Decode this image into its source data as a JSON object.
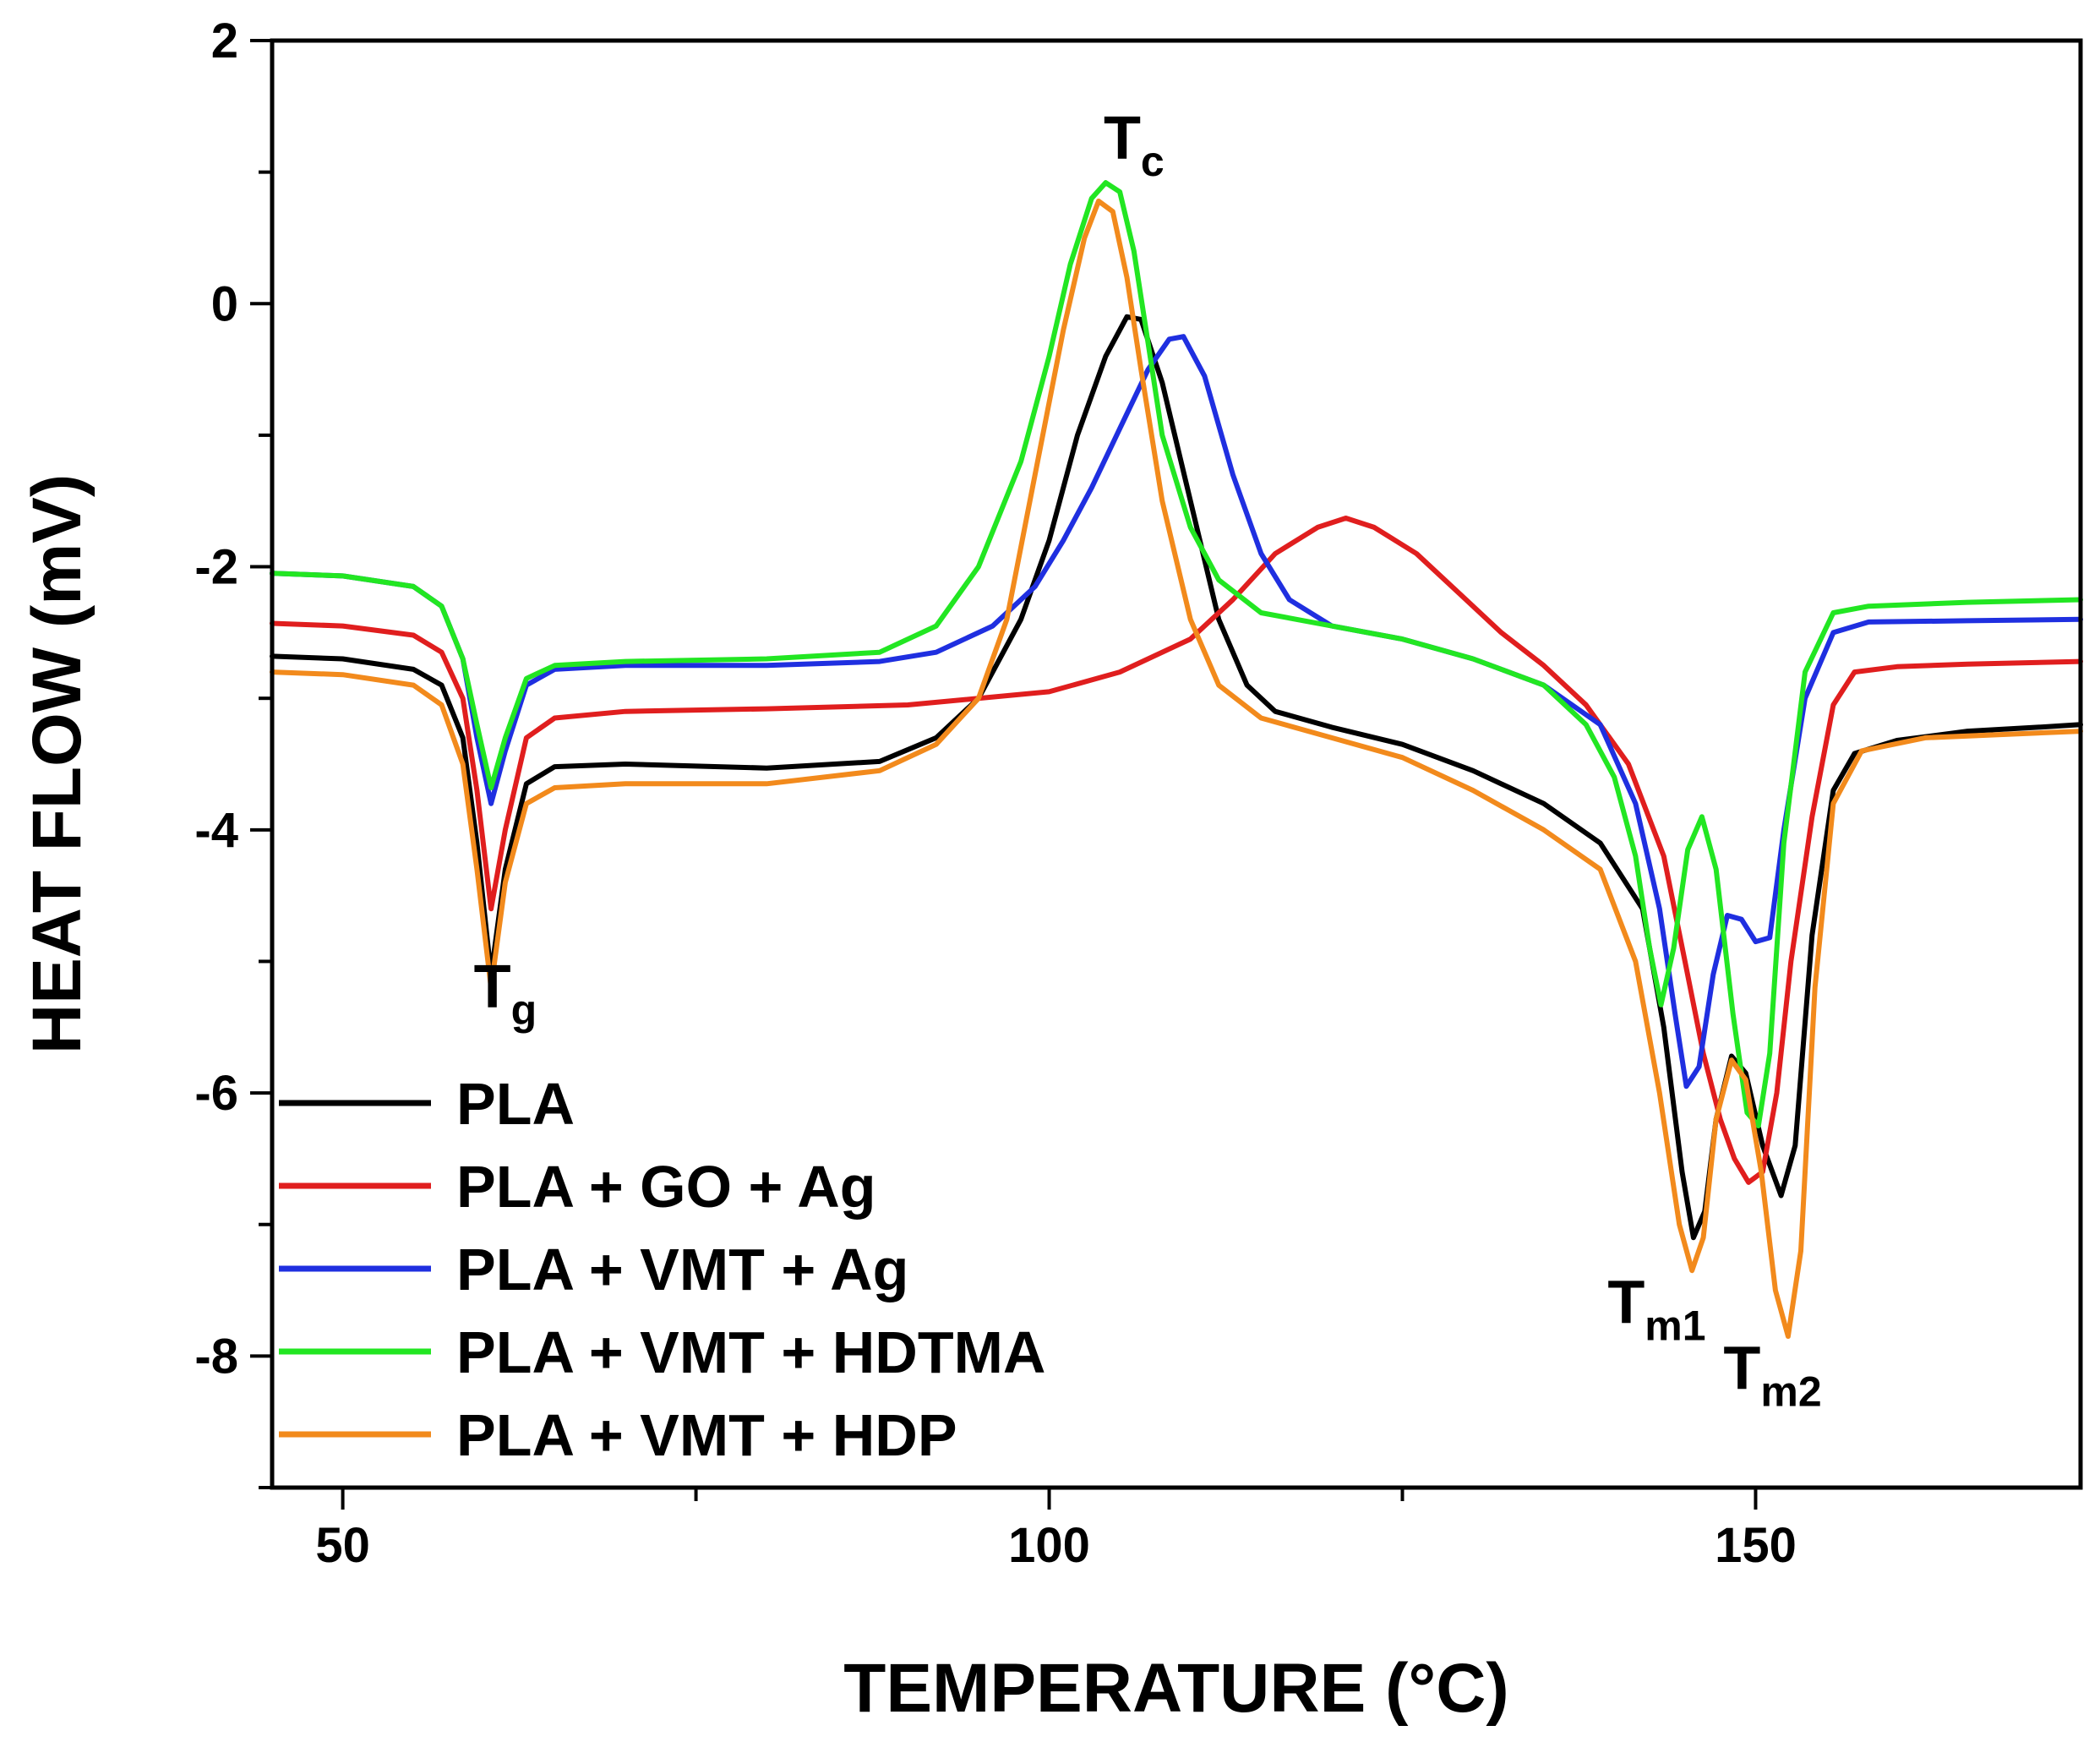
{
  "chart_data": {
    "type": "line",
    "xlabel": "TEMPERATURE (°C)",
    "ylabel": "HEAT FLOW (mV)",
    "xlim": [
      45,
      173
    ],
    "ylim": [
      -9,
      2
    ],
    "x_ticks": [
      50,
      100,
      150
    ],
    "y_ticks": [
      2,
      0,
      -2,
      -4,
      -6,
      -8
    ],
    "grid": false,
    "legend_position": "bottom-left",
    "annotations": [
      {
        "id": "tc",
        "main": "T",
        "sub": "c",
        "x": 106,
        "y": 1.1
      },
      {
        "id": "tg",
        "main": "T",
        "sub": "g",
        "x": 61.5,
        "y": -5.35
      },
      {
        "id": "tm1",
        "main": "T",
        "sub": "m1",
        "x": 143,
        "y": -7.75
      },
      {
        "id": "tm2",
        "main": "T",
        "sub": "m2",
        "x": 151.2,
        "y": -8.25
      }
    ],
    "series": [
      {
        "name": "PLA",
        "color": "#000000",
        "points": [
          [
            45,
            -2.68
          ],
          [
            50,
            -2.7
          ],
          [
            55,
            -2.78
          ],
          [
            57,
            -2.9
          ],
          [
            58.5,
            -3.3
          ],
          [
            59.5,
            -4.1
          ],
          [
            60.5,
            -5.1
          ],
          [
            61.5,
            -4.3
          ],
          [
            63,
            -3.65
          ],
          [
            65,
            -3.52
          ],
          [
            70,
            -3.5
          ],
          [
            80,
            -3.53
          ],
          [
            88,
            -3.48
          ],
          [
            92,
            -3.3
          ],
          [
            95,
            -3.0
          ],
          [
            98,
            -2.4
          ],
          [
            100,
            -1.8
          ],
          [
            102,
            -1.0
          ],
          [
            104,
            -0.4
          ],
          [
            105.5,
            -0.1
          ],
          [
            106.5,
            -0.12
          ],
          [
            108,
            -0.6
          ],
          [
            110,
            -1.5
          ],
          [
            112,
            -2.4
          ],
          [
            114,
            -2.9
          ],
          [
            116,
            -3.1
          ],
          [
            120,
            -3.22
          ],
          [
            125,
            -3.35
          ],
          [
            130,
            -3.55
          ],
          [
            135,
            -3.8
          ],
          [
            139,
            -4.1
          ],
          [
            142,
            -4.6
          ],
          [
            143.5,
            -5.5
          ],
          [
            144.8,
            -6.6
          ],
          [
            145.6,
            -7.1
          ],
          [
            146.4,
            -6.9
          ],
          [
            147.2,
            -6.2
          ],
          [
            148.3,
            -5.72
          ],
          [
            149.3,
            -5.85
          ],
          [
            150.5,
            -6.4
          ],
          [
            151.8,
            -6.78
          ],
          [
            152.8,
            -6.4
          ],
          [
            154,
            -4.8
          ],
          [
            155.5,
            -3.7
          ],
          [
            157,
            -3.42
          ],
          [
            160,
            -3.32
          ],
          [
            165,
            -3.25
          ],
          [
            170,
            -3.22
          ],
          [
            173,
            -3.2
          ]
        ]
      },
      {
        "name": "PLA + GO + Ag",
        "color": "#e01e1e",
        "points": [
          [
            45,
            -2.43
          ],
          [
            50,
            -2.45
          ],
          [
            55,
            -2.52
          ],
          [
            57,
            -2.65
          ],
          [
            58.5,
            -3.0
          ],
          [
            59.5,
            -3.7
          ],
          [
            60.5,
            -4.6
          ],
          [
            61.5,
            -4.0
          ],
          [
            63,
            -3.3
          ],
          [
            65,
            -3.15
          ],
          [
            70,
            -3.1
          ],
          [
            80,
            -3.08
          ],
          [
            90,
            -3.05
          ],
          [
            100,
            -2.95
          ],
          [
            105,
            -2.8
          ],
          [
            110,
            -2.55
          ],
          [
            113,
            -2.25
          ],
          [
            116,
            -1.9
          ],
          [
            119,
            -1.7
          ],
          [
            121,
            -1.63
          ],
          [
            123,
            -1.7
          ],
          [
            126,
            -1.9
          ],
          [
            129,
            -2.2
          ],
          [
            132,
            -2.5
          ],
          [
            135,
            -2.75
          ],
          [
            138,
            -3.05
          ],
          [
            141,
            -3.5
          ],
          [
            143.5,
            -4.2
          ],
          [
            145,
            -5.0
          ],
          [
            146.3,
            -5.7
          ],
          [
            147.5,
            -6.2
          ],
          [
            148.5,
            -6.5
          ],
          [
            149.5,
            -6.68
          ],
          [
            150.5,
            -6.6
          ],
          [
            151.5,
            -6.0
          ],
          [
            152.5,
            -5.0
          ],
          [
            154,
            -3.9
          ],
          [
            155.5,
            -3.05
          ],
          [
            157,
            -2.8
          ],
          [
            160,
            -2.76
          ],
          [
            165,
            -2.74
          ],
          [
            173,
            -2.72
          ]
        ]
      },
      {
        "name": "PLA + VMT + Ag",
        "color": "#1f2fe0",
        "points": [
          [
            45,
            -2.05
          ],
          [
            50,
            -2.07
          ],
          [
            55,
            -2.15
          ],
          [
            57,
            -2.3
          ],
          [
            58.5,
            -2.7
          ],
          [
            59.5,
            -3.3
          ],
          [
            60.5,
            -3.8
          ],
          [
            61.5,
            -3.4
          ],
          [
            63,
            -2.9
          ],
          [
            65,
            -2.78
          ],
          [
            70,
            -2.75
          ],
          [
            80,
            -2.75
          ],
          [
            88,
            -2.72
          ],
          [
            92,
            -2.65
          ],
          [
            96,
            -2.45
          ],
          [
            99,
            -2.15
          ],
          [
            101,
            -1.8
          ],
          [
            103,
            -1.4
          ],
          [
            105,
            -0.95
          ],
          [
            107,
            -0.5
          ],
          [
            108.5,
            -0.27
          ],
          [
            109.5,
            -0.25
          ],
          [
            111,
            -0.55
          ],
          [
            113,
            -1.3
          ],
          [
            115,
            -1.9
          ],
          [
            117,
            -2.25
          ],
          [
            120,
            -2.45
          ],
          [
            125,
            -2.55
          ],
          [
            130,
            -2.7
          ],
          [
            135,
            -2.9
          ],
          [
            139,
            -3.2
          ],
          [
            141.5,
            -3.8
          ],
          [
            143.2,
            -4.6
          ],
          [
            144.3,
            -5.4
          ],
          [
            145.1,
            -5.95
          ],
          [
            146,
            -5.8
          ],
          [
            147,
            -5.1
          ],
          [
            148,
            -4.65
          ],
          [
            149,
            -4.68
          ],
          [
            150,
            -4.85
          ],
          [
            151,
            -4.82
          ],
          [
            152,
            -4.0
          ],
          [
            153.5,
            -3.0
          ],
          [
            155.5,
            -2.5
          ],
          [
            158,
            -2.42
          ],
          [
            165,
            -2.41
          ],
          [
            173,
            -2.4
          ]
        ]
      },
      {
        "name": "PLA + VMT + HDTMA",
        "color": "#22e622",
        "points": [
          [
            45,
            -2.05
          ],
          [
            50,
            -2.07
          ],
          [
            55,
            -2.15
          ],
          [
            57,
            -2.3
          ],
          [
            58.5,
            -2.7
          ],
          [
            59.5,
            -3.2
          ],
          [
            60.5,
            -3.68
          ],
          [
            61.5,
            -3.3
          ],
          [
            63,
            -2.85
          ],
          [
            65,
            -2.75
          ],
          [
            70,
            -2.72
          ],
          [
            80,
            -2.7
          ],
          [
            88,
            -2.65
          ],
          [
            92,
            -2.45
          ],
          [
            95,
            -2.0
          ],
          [
            98,
            -1.2
          ],
          [
            100,
            -0.4
          ],
          [
            101.5,
            0.3
          ],
          [
            103,
            0.8
          ],
          [
            104,
            0.92
          ],
          [
            105,
            0.85
          ],
          [
            106,
            0.4
          ],
          [
            107,
            -0.3
          ],
          [
            108,
            -1.0
          ],
          [
            110,
            -1.7
          ],
          [
            112,
            -2.1
          ],
          [
            115,
            -2.35
          ],
          [
            120,
            -2.45
          ],
          [
            125,
            -2.55
          ],
          [
            130,
            -2.7
          ],
          [
            135,
            -2.9
          ],
          [
            138,
            -3.2
          ],
          [
            140,
            -3.6
          ],
          [
            141.5,
            -4.2
          ],
          [
            142.5,
            -4.9
          ],
          [
            143.3,
            -5.33
          ],
          [
            144.2,
            -4.9
          ],
          [
            145.2,
            -4.15
          ],
          [
            146.2,
            -3.9
          ],
          [
            147.2,
            -4.3
          ],
          [
            148.4,
            -5.4
          ],
          [
            149.4,
            -6.15
          ],
          [
            150.2,
            -6.25
          ],
          [
            151,
            -5.7
          ],
          [
            152,
            -4.1
          ],
          [
            153.5,
            -2.8
          ],
          [
            155.5,
            -2.35
          ],
          [
            158,
            -2.3
          ],
          [
            165,
            -2.27
          ],
          [
            173,
            -2.25
          ]
        ]
      },
      {
        "name": "PLA + VMT + HDP",
        "color": "#f28a1c",
        "points": [
          [
            45,
            -2.8
          ],
          [
            50,
            -2.82
          ],
          [
            55,
            -2.9
          ],
          [
            57,
            -3.05
          ],
          [
            58.5,
            -3.5
          ],
          [
            59.5,
            -4.3
          ],
          [
            60.5,
            -5.2
          ],
          [
            61.5,
            -4.4
          ],
          [
            63,
            -3.8
          ],
          [
            65,
            -3.68
          ],
          [
            70,
            -3.65
          ],
          [
            80,
            -3.65
          ],
          [
            88,
            -3.55
          ],
          [
            92,
            -3.35
          ],
          [
            95,
            -3.0
          ],
          [
            97,
            -2.4
          ],
          [
            99,
            -1.3
          ],
          [
            101,
            -0.2
          ],
          [
            102.5,
            0.5
          ],
          [
            103.5,
            0.78
          ],
          [
            104.5,
            0.7
          ],
          [
            105.5,
            0.2
          ],
          [
            106.5,
            -0.5
          ],
          [
            108,
            -1.5
          ],
          [
            110,
            -2.4
          ],
          [
            112,
            -2.9
          ],
          [
            115,
            -3.15
          ],
          [
            120,
            -3.3
          ],
          [
            125,
            -3.45
          ],
          [
            130,
            -3.7
          ],
          [
            135,
            -4.0
          ],
          [
            139,
            -4.3
          ],
          [
            141.5,
            -5.0
          ],
          [
            143.2,
            -6.0
          ],
          [
            144.6,
            -7.0
          ],
          [
            145.5,
            -7.35
          ],
          [
            146.3,
            -7.1
          ],
          [
            147.2,
            -6.2
          ],
          [
            148.3,
            -5.75
          ],
          [
            149.3,
            -5.9
          ],
          [
            150.4,
            -6.6
          ],
          [
            151.4,
            -7.5
          ],
          [
            152.3,
            -7.85
          ],
          [
            153.2,
            -7.2
          ],
          [
            154.2,
            -5.2
          ],
          [
            155.5,
            -3.8
          ],
          [
            157.5,
            -3.4
          ],
          [
            162,
            -3.3
          ],
          [
            173,
            -3.25
          ]
        ]
      }
    ]
  }
}
